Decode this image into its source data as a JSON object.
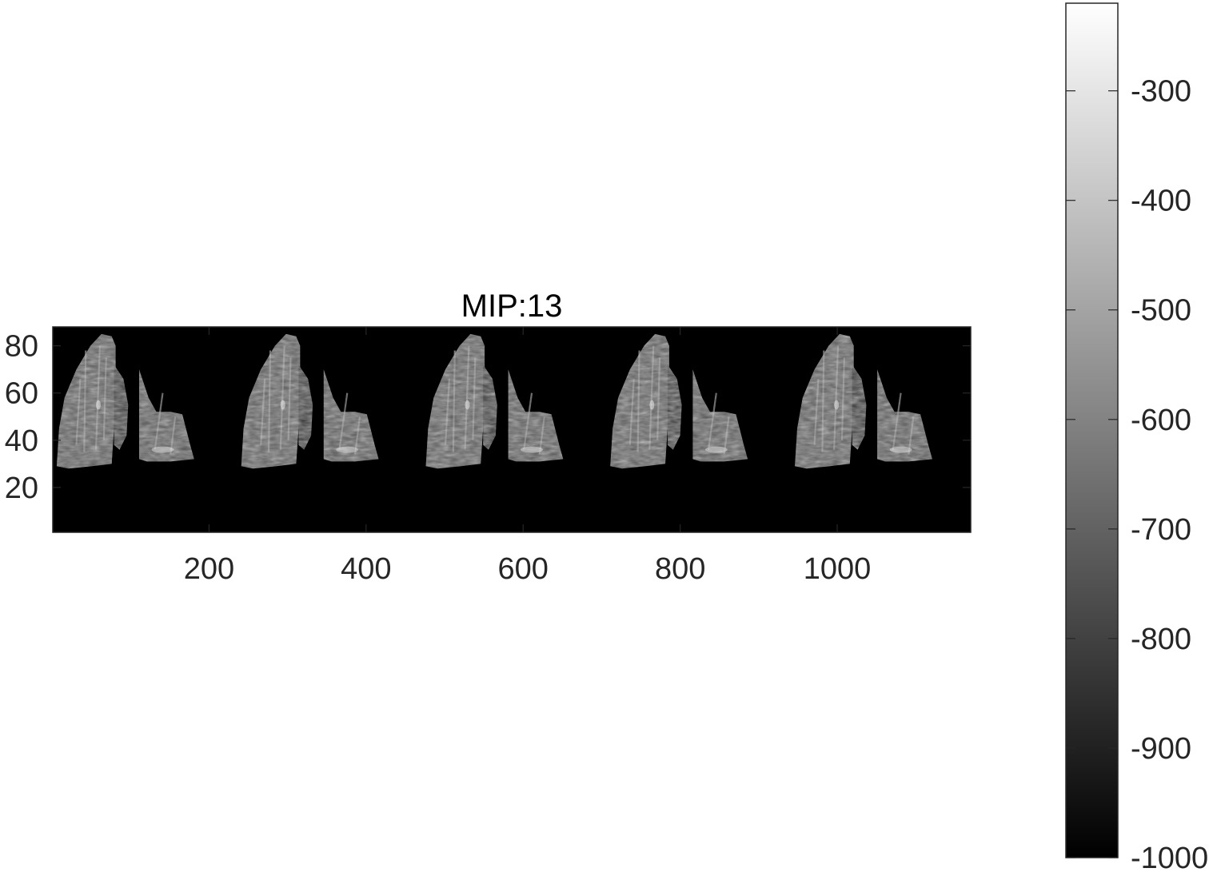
{
  "figure": {
    "title": "MIP:13",
    "image_description_hidden": "",
    "axes": {
      "x_range": [
        1,
        1170
      ],
      "y_range": [
        1,
        88
      ],
      "x_ticks": [
        200,
        400,
        600,
        800,
        1000
      ],
      "x_tick_labels": [
        "200",
        "400",
        "600",
        "800",
        "1000"
      ],
      "y_ticks": [
        20,
        40,
        60,
        80
      ],
      "y_tick_labels": [
        "20",
        "40",
        "60",
        "80"
      ],
      "y_reversed": false,
      "background_color": "#000000",
      "frame_color": "#262626"
    },
    "colorbar": {
      "colormap": "gray",
      "range": [
        -1000,
        -220
      ],
      "ticks": [
        -1000,
        -900,
        -800,
        -700,
        -600,
        -500,
        -400,
        -300
      ],
      "tick_labels": [
        "-1000",
        "-900",
        "-800",
        "-700",
        "-600",
        "-500",
        "-400",
        "-300"
      ]
    },
    "panels": [
      {
        "x0": 1
      },
      {
        "x0": 236
      },
      {
        "x0": 471
      },
      {
        "x0": 706
      },
      {
        "x0": 941
      }
    ]
  }
}
